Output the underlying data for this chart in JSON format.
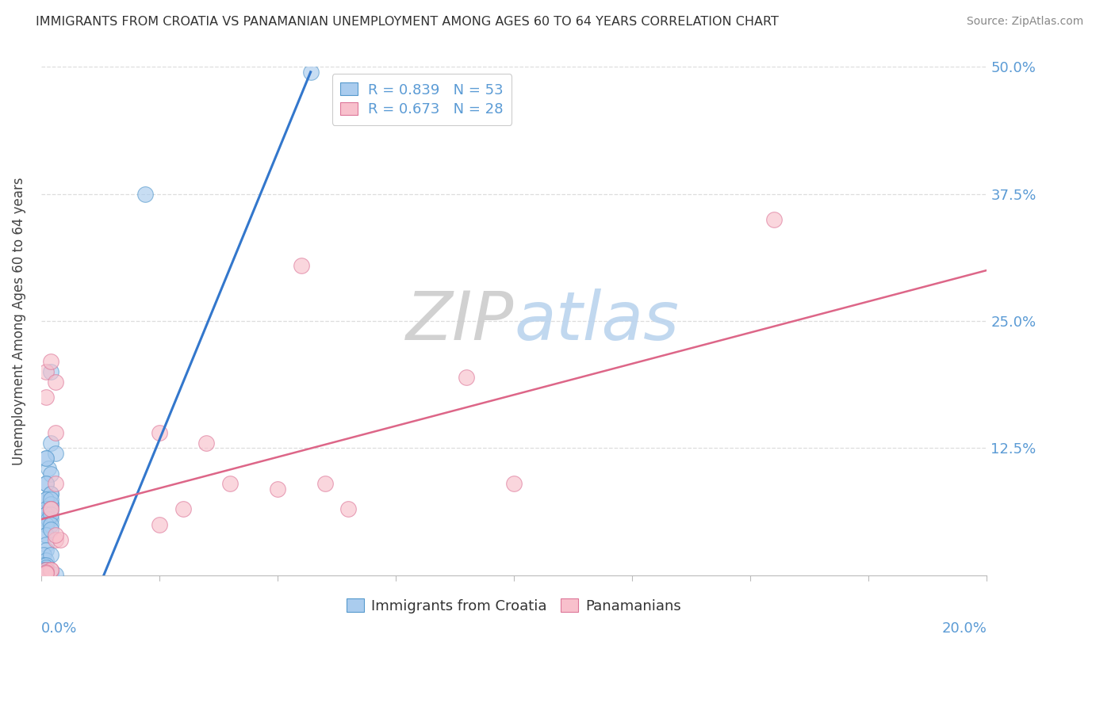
{
  "title": "IMMIGRANTS FROM CROATIA VS PANAMANIAN UNEMPLOYMENT AMONG AGES 60 TO 64 YEARS CORRELATION CHART",
  "source": "Source: ZipAtlas.com",
  "ylabel": "Unemployment Among Ages 60 to 64 years",
  "xlim": [
    0.0,
    0.2
  ],
  "ylim": [
    0.0,
    0.5
  ],
  "blue_R": 0.839,
  "blue_N": 53,
  "pink_R": 0.673,
  "pink_N": 28,
  "blue_scatter_color": "#aaccee",
  "blue_scatter_edge": "#5599cc",
  "pink_scatter_color": "#f8c0cc",
  "pink_scatter_edge": "#dd7799",
  "blue_line_color": "#3377cc",
  "pink_line_color": "#dd6688",
  "axis_label_color": "#5b9bd5",
  "title_color": "#333333",
  "source_color": "#888888",
  "legend_blue_label": "Immigrants from Croatia",
  "legend_pink_label": "Panamanians",
  "grid_color": "#dddddd",
  "ytick_vals": [
    0.0,
    0.125,
    0.25,
    0.375,
    0.5
  ],
  "ytick_labels": [
    "",
    "12.5%",
    "25.0%",
    "37.5%",
    "50.0%"
  ],
  "blue_scatter_x": [
    0.001,
    0.0015,
    0.002,
    0.001,
    0.002,
    0.003,
    0.002,
    0.001,
    0.001,
    0.002,
    0.001,
    0.002,
    0.001,
    0.001,
    0.002,
    0.001,
    0.002,
    0.001,
    0.001,
    0.002,
    0.001,
    0.002,
    0.001,
    0.002,
    0.001,
    0.0015,
    0.002,
    0.001,
    0.001,
    0.002,
    0.001,
    0.002,
    0.001,
    0.001,
    0.0005,
    0.001,
    0.002,
    0.0005,
    0.001,
    0.001,
    0.0005,
    0.001,
    0.001,
    0.0005,
    0.001,
    0.001,
    0.0005,
    0.001,
    0.001,
    0.002,
    0.003,
    0.057,
    0.022
  ],
  "blue_scatter_y": [
    0.115,
    0.105,
    0.13,
    0.09,
    0.1,
    0.12,
    0.08,
    0.115,
    0.09,
    0.2,
    0.065,
    0.07,
    0.06,
    0.075,
    0.08,
    0.075,
    0.07,
    0.065,
    0.06,
    0.075,
    0.055,
    0.065,
    0.06,
    0.055,
    0.05,
    0.055,
    0.06,
    0.05,
    0.04,
    0.05,
    0.04,
    0.045,
    0.03,
    0.025,
    0.02,
    0.015,
    0.02,
    0.01,
    0.01,
    0.008,
    0.005,
    0.005,
    0.003,
    0.002,
    0.003,
    0.002,
    0.001,
    0.001,
    0.001,
    0.002,
    0.001,
    0.495,
    0.375
  ],
  "pink_scatter_x": [
    0.001,
    0.002,
    0.001,
    0.003,
    0.003,
    0.002,
    0.003,
    0.002,
    0.003,
    0.004,
    0.003,
    0.025,
    0.03,
    0.025,
    0.035,
    0.04,
    0.05,
    0.055,
    0.06,
    0.065,
    0.09,
    0.1,
    0.155,
    0.001,
    0.002,
    0.001,
    0.001,
    0.002
  ],
  "pink_scatter_y": [
    0.2,
    0.21,
    0.175,
    0.19,
    0.14,
    0.065,
    0.09,
    0.005,
    0.035,
    0.035,
    0.04,
    0.14,
    0.065,
    0.05,
    0.13,
    0.09,
    0.085,
    0.305,
    0.09,
    0.065,
    0.195,
    0.09,
    0.35,
    0.005,
    0.005,
    0.003,
    0.002,
    0.065
  ],
  "blue_line_x": [
    0.0,
    0.057
  ],
  "blue_line_y": [
    -0.15,
    0.495
  ],
  "pink_line_x": [
    0.0,
    0.2
  ],
  "pink_line_y": [
    0.055,
    0.3
  ]
}
